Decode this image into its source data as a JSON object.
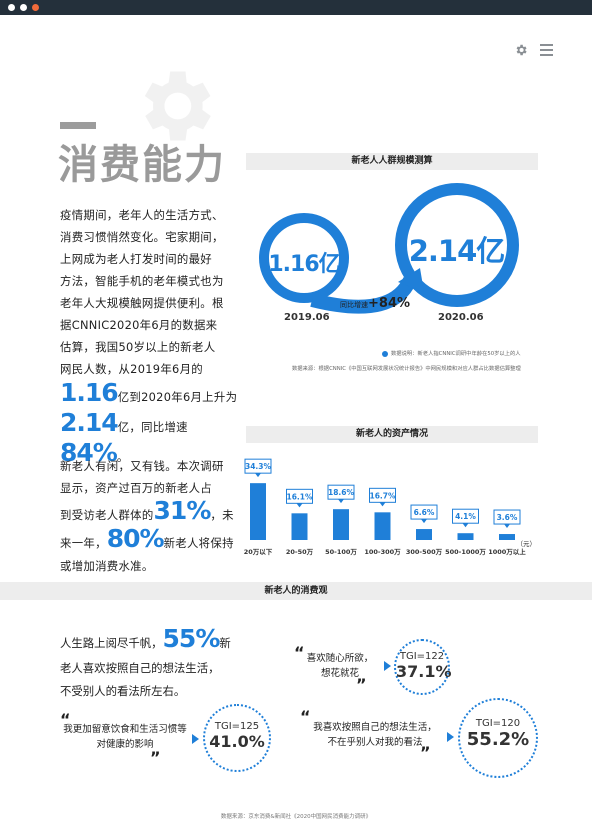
{
  "header": {
    "dots": [
      "#ffffff",
      "#ffffff",
      "#f26b3a"
    ]
  },
  "title": "消费能力",
  "intro": {
    "lines": [
      "疫情期间，老年人的生活方式、",
      "消费习惯悄然变化。宅家期间，",
      "上网成为老人打发时间的最好",
      "方法，智能手机的老年模式也为",
      "老年人大规模触网提供便利。根",
      "据CNNIC2020年6月的数据来",
      "估算，我国50岁以上的新老人",
      "网民人数，从2019年6月的"
    ],
    "l9_num": "1.16",
    "l9_text": "亿到2020年6月上升为",
    "l10_num": "2.14",
    "l10_text": "亿，同比增速",
    "l10_pct": "84%",
    "l10_end": "。"
  },
  "para2": {
    "lines": [
      "新老人有闲，又有钱。本次调研",
      "显示，资产过百万的新老人占"
    ],
    "l3_text": "到受访老人群体的",
    "l3_num": "31%",
    "l3_end": "，未",
    "l4_text": "来一年，",
    "l4_num": "80%",
    "l4_end": "新老人将保持",
    "l5": "或增加消费水准。"
  },
  "scale": {
    "title": "新老人人群规模测算",
    "left_value": "1.16亿",
    "left_year": "2019.06",
    "right_value": "2.14亿",
    "right_year": "2020.06",
    "growth_label": "同比增速",
    "growth_value": "+84%",
    "note1": "数据说明：新老人指CNNIC调研中年龄在50岁以上的人",
    "note2": "数据来源：根据CNNIC《中国互联网发展状况统计报告》中网民规模和对应人群占比数据估算整理"
  },
  "chart_data": {
    "type": "bar",
    "title": "新老人的资产情况",
    "categories": [
      "20万以下",
      "20-50万",
      "50-100万",
      "100-300万",
      "300-500万",
      "500-1000万",
      "1000万以上"
    ],
    "values": [
      34.3,
      16.1,
      18.6,
      16.7,
      6.6,
      4.1,
      3.6
    ],
    "labels": [
      "34.3%",
      "16.1%",
      "18.6%",
      "16.7%",
      "6.6%",
      "4.1%",
      "3.6%"
    ],
    "unit": "（元）",
    "ylim": [
      0,
      35
    ],
    "color": "#1f7fd8"
  },
  "consume": {
    "title": "新老人的消费观",
    "main_pre": "人生路上阅尽千帆，",
    "main_num": "55%",
    "main_post": "新",
    "main_l2": "老人喜欢按照自己的想法生活，",
    "main_l3": "不受别人的看法所左右。",
    "q1_l1": "喜欢随心所欲，",
    "q1_l2": "想花就花",
    "q1_tgi": "TGI=122",
    "q1_pct": "37.1%",
    "q2_l1": "我更加留意饮食和生活习惯等",
    "q2_l2": "对健康的影响",
    "q2_tgi": "TGI=125",
    "q2_pct": "41.0%",
    "q3_l1": "我喜欢按照自己的想法生活，",
    "q3_l2": "不在乎别人对我的看法",
    "q3_tgi": "TGI=120",
    "q3_pct": "55.2%"
  },
  "footer": "数据来源：京东消费&新闻社《2020中国网民消费能力调研》"
}
